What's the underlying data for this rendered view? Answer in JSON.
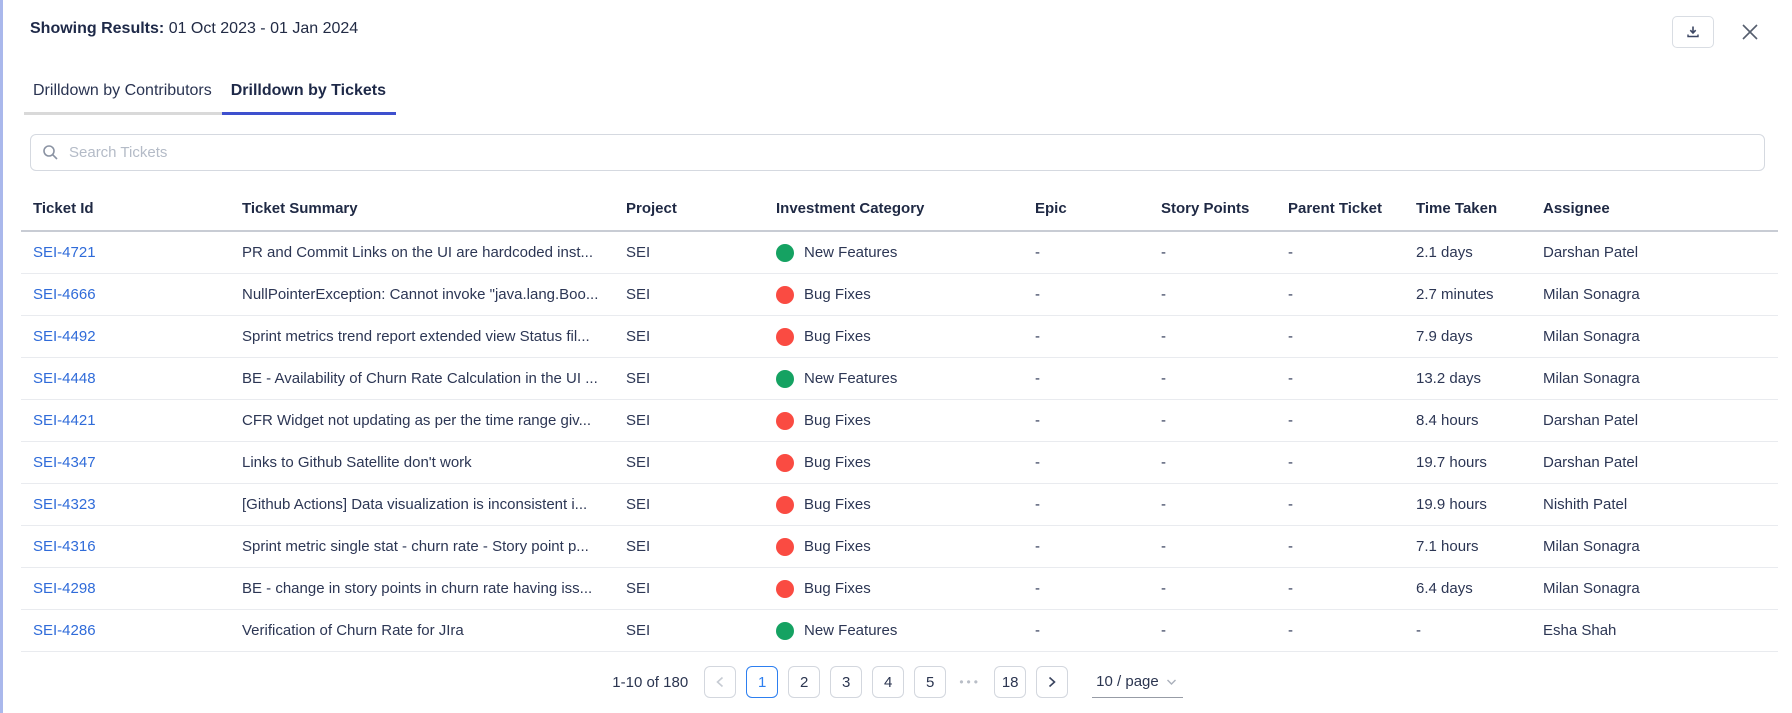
{
  "header": {
    "label": "Showing Results:",
    "date_range": "01 Oct 2023 - 01 Jan 2024"
  },
  "tabs": [
    {
      "label": "Drilldown by Contributors",
      "active": false
    },
    {
      "label": "Drilldown by Tickets",
      "active": true
    }
  ],
  "search": {
    "placeholder": "Search Tickets"
  },
  "colors": {
    "new-features": "#15a262",
    "bug-fixes": "#fa4b42",
    "link_blue": "#2f6bd9",
    "tab_ink": "#3e50ce",
    "active_page": "#2d7ff0"
  },
  "table": {
    "columns": [
      "Ticket Id",
      "Ticket Summary",
      "Project",
      "Investment Category",
      "Epic",
      "Story Points",
      "Parent Ticket",
      "Time Taken",
      "Assignee"
    ],
    "rows": [
      {
        "id": "SEI-4721",
        "summary": "PR and Commit Links on the UI are hardcoded inst...",
        "project": "SEI",
        "category": "New Features",
        "category_type": "new-features",
        "epic": "-",
        "story_points": "-",
        "parent_ticket": "-",
        "time_taken": "2.1 days",
        "assignee": "Darshan Patel"
      },
      {
        "id": "SEI-4666",
        "summary": "NullPointerException: Cannot invoke \"java.lang.Boo...",
        "project": "SEI",
        "category": "Bug Fixes",
        "category_type": "bug-fixes",
        "epic": "-",
        "story_points": "-",
        "parent_ticket": "-",
        "time_taken": "2.7 minutes",
        "assignee": "Milan Sonagra"
      },
      {
        "id": "SEI-4492",
        "summary": "Sprint metrics trend report extended view Status fil...",
        "project": "SEI",
        "category": "Bug Fixes",
        "category_type": "bug-fixes",
        "epic": "-",
        "story_points": "-",
        "parent_ticket": "-",
        "time_taken": "7.9 days",
        "assignee": "Milan Sonagra"
      },
      {
        "id": "SEI-4448",
        "summary": "BE - Availability of Churn Rate Calculation in the UI ...",
        "project": "SEI",
        "category": "New Features",
        "category_type": "new-features",
        "epic": "-",
        "story_points": "-",
        "parent_ticket": "-",
        "time_taken": "13.2 days",
        "assignee": "Milan Sonagra"
      },
      {
        "id": "SEI-4421",
        "summary": "CFR Widget not updating as per the time range giv...",
        "project": "SEI",
        "category": "Bug Fixes",
        "category_type": "bug-fixes",
        "epic": "-",
        "story_points": "-",
        "parent_ticket": "-",
        "time_taken": "8.4 hours",
        "assignee": "Darshan Patel"
      },
      {
        "id": "SEI-4347",
        "summary": "Links to Github Satellite don't work",
        "project": "SEI",
        "category": "Bug Fixes",
        "category_type": "bug-fixes",
        "epic": "-",
        "story_points": "-",
        "parent_ticket": "-",
        "time_taken": "19.7 hours",
        "assignee": "Darshan Patel"
      },
      {
        "id": "SEI-4323",
        "summary": "[Github Actions] Data visualization is inconsistent i...",
        "project": "SEI",
        "category": "Bug Fixes",
        "category_type": "bug-fixes",
        "epic": "-",
        "story_points": "-",
        "parent_ticket": "-",
        "time_taken": "19.9 hours",
        "assignee": "Nishith Patel"
      },
      {
        "id": "SEI-4316",
        "summary": "Sprint metric single stat - churn rate - Story point p...",
        "project": "SEI",
        "category": "Bug Fixes",
        "category_type": "bug-fixes",
        "epic": "-",
        "story_points": "-",
        "parent_ticket": "-",
        "time_taken": "7.1 hours",
        "assignee": "Milan Sonagra"
      },
      {
        "id": "SEI-4298",
        "summary": "BE - change in story points in churn rate having iss...",
        "project": "SEI",
        "category": "Bug Fixes",
        "category_type": "bug-fixes",
        "epic": "-",
        "story_points": "-",
        "parent_ticket": "-",
        "time_taken": "6.4 days",
        "assignee": "Milan Sonagra"
      },
      {
        "id": "SEI-4286",
        "summary": "Verification of Churn Rate for JIra",
        "project": "SEI",
        "category": "New Features",
        "category_type": "new-features",
        "epic": "-",
        "story_points": "-",
        "parent_ticket": "-",
        "time_taken": "-",
        "assignee": "Esha Shah"
      }
    ]
  },
  "pagination": {
    "summary": "1-10 of 180",
    "pages": [
      "1",
      "2",
      "3",
      "4",
      "5"
    ],
    "active_index": 0,
    "ellipsis": "•••",
    "last_page": "18",
    "page_size_label": "10 / page"
  }
}
